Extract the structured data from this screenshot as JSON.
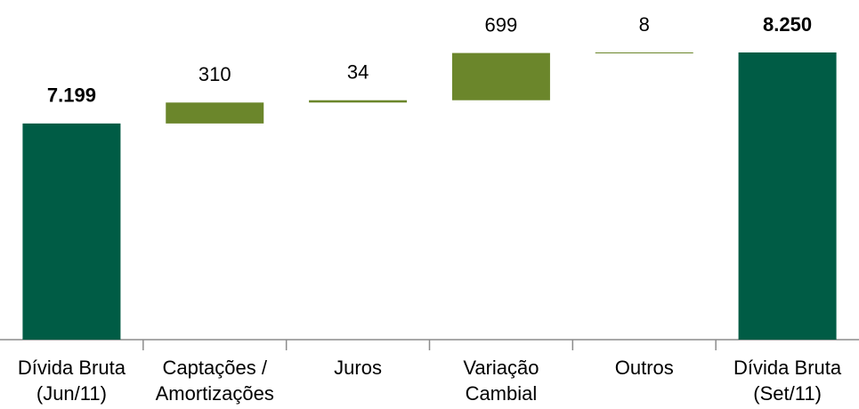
{
  "chart_data": {
    "type": "waterfall",
    "categories": [
      [
        "Dívida Bruta",
        "(Jun/11)"
      ],
      [
        "Captações /",
        "Amortizações"
      ],
      [
        "Juros"
      ],
      [
        "Variação",
        "Cambial"
      ],
      [
        "Outros"
      ],
      [
        "Dívida Bruta",
        "(Set/11)"
      ]
    ],
    "values": [
      7199,
      310,
      34,
      699,
      8,
      8250
    ],
    "value_labels": [
      "7.199",
      "310",
      "34",
      "699",
      "8",
      "8.250"
    ],
    "totals": [
      0,
      5
    ],
    "total_color": "#005c45",
    "delta_color": "#6b862b",
    "ylim": [
      4000,
      8500
    ]
  }
}
